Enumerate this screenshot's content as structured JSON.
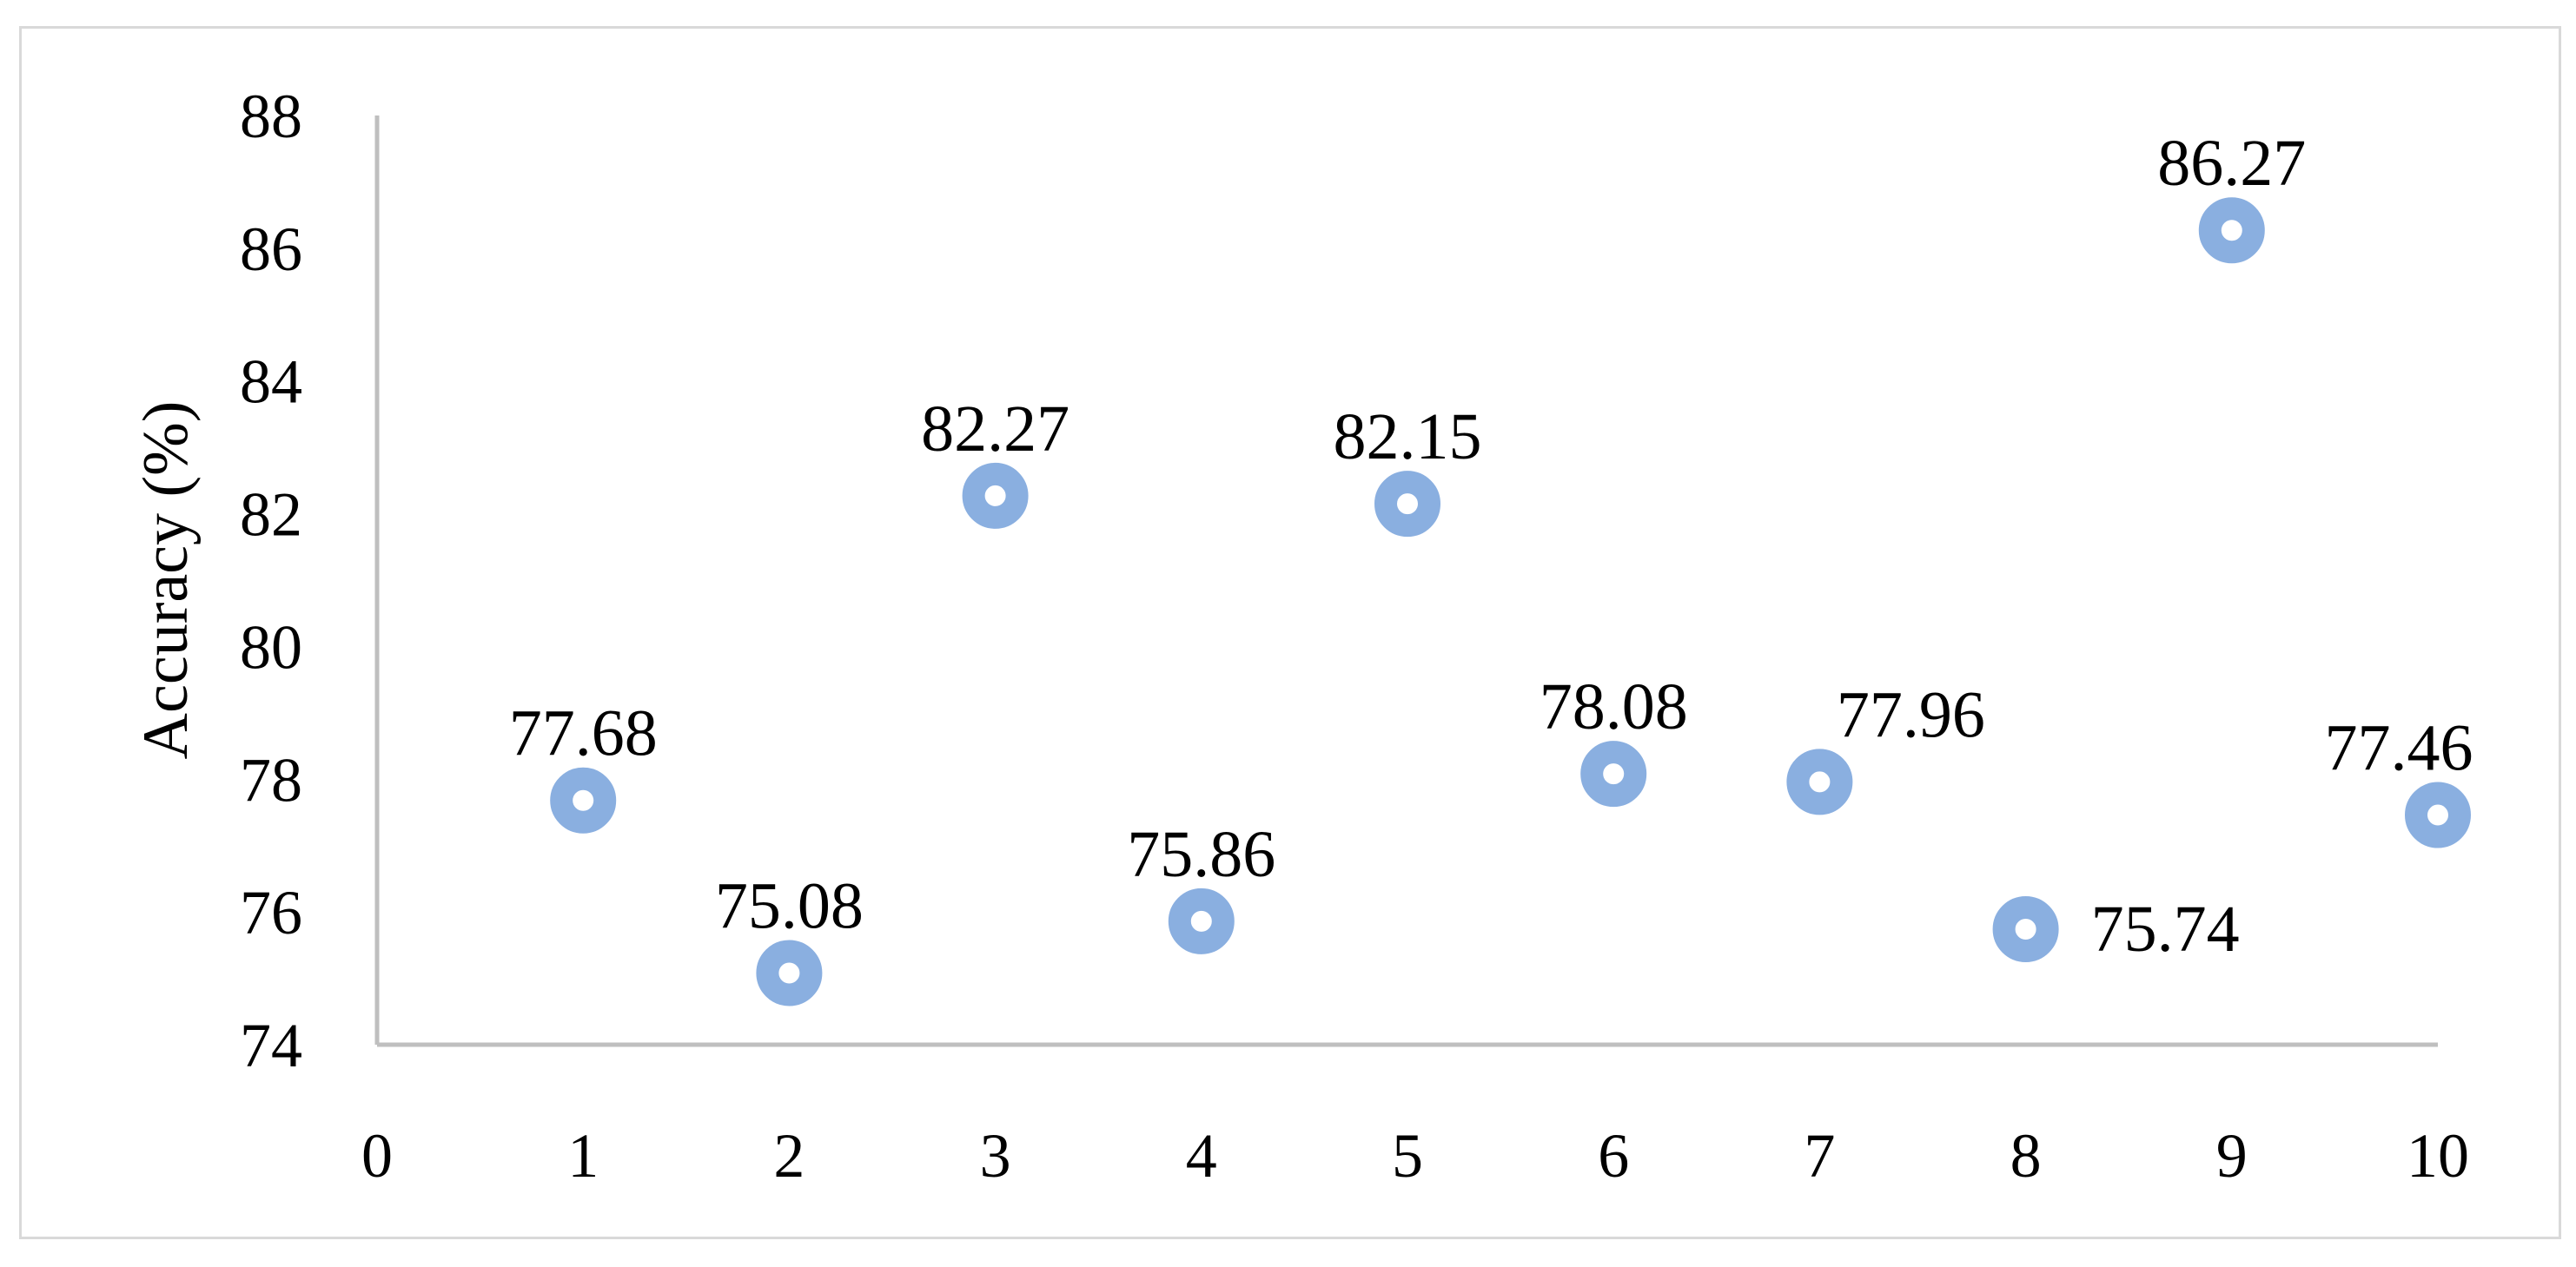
{
  "chart_data": {
    "type": "scatter",
    "title": "",
    "xlabel": "",
    "ylabel": "Accuracy (%)",
    "xlim": [
      0,
      10
    ],
    "ylim": [
      74,
      88
    ],
    "x_ticks": [
      "0",
      "1",
      "2",
      "3",
      "4",
      "5",
      "6",
      "7",
      "8",
      "9",
      "10"
    ],
    "y_ticks": [
      "74",
      "76",
      "78",
      "80",
      "82",
      "84",
      "86",
      "88"
    ],
    "grid": false,
    "legend": "none",
    "marker_color": "#8aafe0",
    "axis_color": "#bfbfbf",
    "points": [
      {
        "x": 1,
        "y": 77.68,
        "label": "77.68"
      },
      {
        "x": 2,
        "y": 75.08,
        "label": "75.08"
      },
      {
        "x": 3,
        "y": 82.27,
        "label": "82.27"
      },
      {
        "x": 4,
        "y": 75.86,
        "label": "75.86"
      },
      {
        "x": 5,
        "y": 82.15,
        "label": "82.15"
      },
      {
        "x": 6,
        "y": 78.08,
        "label": "78.08"
      },
      {
        "x": 7,
        "y": 77.96,
        "label": "77.96"
      },
      {
        "x": 8,
        "y": 75.74,
        "label": "75.74"
      },
      {
        "x": 9,
        "y": 86.27,
        "label": "86.27"
      },
      {
        "x": 10,
        "y": 77.46,
        "label": "77.46"
      }
    ]
  }
}
